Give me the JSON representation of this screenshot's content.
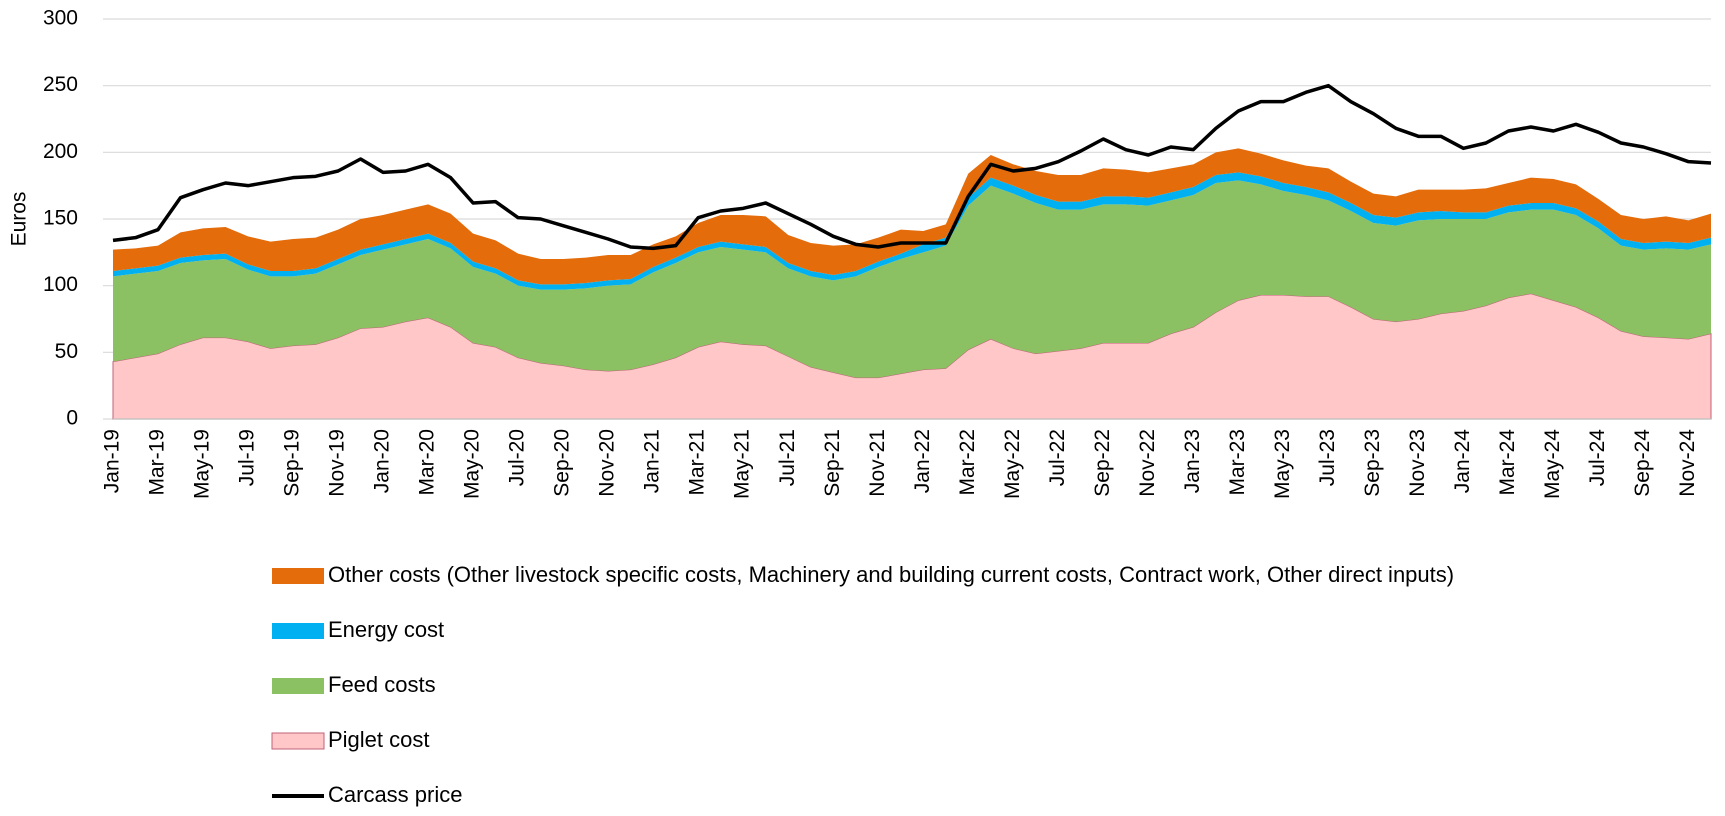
{
  "chart_data": {
    "type": "area",
    "stacked": true,
    "y_label": "Euros",
    "categories": [
      "Jan-19",
      null,
      "Mar-19",
      null,
      "May-19",
      null,
      "Jul-19",
      null,
      "Sep-19",
      null,
      "Nov-19",
      null,
      "Jan-20",
      null,
      "Mar-20",
      null,
      "May-20",
      null,
      "Jul-20",
      null,
      "Sep-20",
      null,
      "Nov-20",
      null,
      "Jan-21",
      null,
      "Mar-21",
      null,
      "May-21",
      null,
      "Jul-21",
      null,
      "Sep-21",
      null,
      "Nov-21",
      null,
      "Jan-22",
      null,
      "Mar-22",
      null,
      "May-22",
      null,
      "Jul-22",
      null,
      "Sep-22",
      null,
      "Nov-22",
      null,
      "Jan-23",
      null,
      "Mar-23",
      null,
      "May-23",
      null,
      "Jul-23",
      null,
      "Sep-23",
      null,
      "Nov-23",
      null,
      "Jan-24",
      null,
      "Mar-24",
      null,
      "May-24",
      null,
      "Jul-24",
      null,
      "Sep-24",
      null,
      "Nov-24",
      null
    ],
    "ylim": [
      0,
      300
    ],
    "yticks": [
      0,
      50,
      100,
      150,
      200,
      250,
      300
    ],
    "grid": true,
    "series": [
      {
        "name": "Piglet cost",
        "type": "area",
        "color": "#ffc7c7",
        "stroke": "#c0607a",
        "values": [
          43,
          46,
          49,
          56,
          61,
          61,
          58,
          53,
          55,
          56,
          61,
          68,
          69,
          73,
          76,
          69,
          57,
          54,
          46,
          42,
          40,
          37,
          36,
          37,
          41,
          46,
          54,
          58,
          56,
          55,
          47,
          39,
          35,
          31,
          31,
          34,
          37,
          38,
          52,
          60,
          53,
          49,
          51,
          53,
          57,
          57,
          57,
          64,
          69,
          80,
          89,
          93,
          93,
          92,
          92,
          84,
          75,
          73,
          75,
          79,
          81,
          85,
          91,
          94,
          89,
          84,
          76,
          66,
          62,
          61,
          60,
          64
        ]
      },
      {
        "name": "Feed costs",
        "type": "area",
        "color": "#8bc162",
        "values": [
          64,
          63,
          62,
          61,
          58,
          59,
          54,
          54,
          52,
          53,
          55,
          55,
          58,
          58,
          59,
          59,
          57,
          55,
          54,
          55,
          57,
          61,
          64,
          64,
          69,
          71,
          71,
          71,
          71,
          70,
          66,
          68,
          69,
          76,
          83,
          86,
          88,
          92,
          108,
          115,
          116,
          113,
          106,
          104,
          104,
          104,
          103,
          100,
          99,
          97,
          90,
          83,
          78,
          76,
          72,
          72,
          72,
          72,
          74,
          71,
          69,
          65,
          64,
          63,
          68,
          69,
          67,
          64,
          65,
          67,
          67,
          67
        ]
      },
      {
        "name": "Energy cost",
        "type": "area",
        "color": "#00b0f0",
        "values": [
          4,
          4,
          4,
          4,
          4,
          4,
          4,
          4,
          4,
          4,
          4,
          4,
          4,
          4,
          4,
          4,
          4,
          4,
          4,
          4,
          4,
          4,
          4,
          4,
          4,
          4,
          4,
          4,
          4,
          4,
          4,
          4,
          4,
          4,
          4,
          4,
          6,
          6,
          6,
          6,
          6,
          6,
          6,
          6,
          6,
          6,
          6,
          6,
          6,
          6,
          6,
          6,
          6,
          6,
          6,
          6,
          6,
          6,
          6,
          6,
          5,
          5,
          5,
          5,
          5,
          5,
          5,
          5,
          5,
          5,
          5,
          5
        ]
      },
      {
        "name": "Other costs (Other livestock specific costs, Machinery and building current costs, Contract work, Other direct inputs)",
        "type": "area",
        "color": "#e46c0a",
        "values": [
          16,
          15,
          15,
          19,
          20,
          20,
          21,
          22,
          24,
          23,
          22,
          23,
          22,
          22,
          22,
          22,
          21,
          21,
          20,
          19,
          19,
          19,
          19,
          18,
          17,
          16,
          18,
          20,
          22,
          23,
          21,
          21,
          22,
          20,
          18,
          18,
          10,
          10,
          18,
          17,
          16,
          18,
          20,
          20,
          21,
          20,
          19,
          18,
          17,
          17,
          18,
          17,
          17,
          16,
          18,
          16,
          16,
          16,
          17,
          16,
          17,
          18,
          17,
          19,
          18,
          18,
          17,
          18,
          18,
          19,
          17,
          18
        ]
      },
      {
        "name": "Carcass price",
        "type": "line",
        "color": "#000000",
        "values": [
          134,
          136,
          142,
          166,
          172,
          177,
          175,
          178,
          181,
          182,
          186,
          195,
          185,
          186,
          191,
          181,
          162,
          163,
          151,
          150,
          145,
          140,
          135,
          129,
          128,
          130,
          151,
          156,
          158,
          162,
          154,
          146,
          137,
          131,
          129,
          132,
          132,
          132,
          167,
          191,
          186,
          188,
          193,
          201,
          210,
          202,
          198,
          204,
          202,
          218,
          231,
          238,
          238,
          245,
          250,
          238,
          229,
          218,
          212,
          212,
          203,
          207,
          216,
          219,
          216,
          221,
          215,
          207,
          204,
          199,
          193,
          192
        ]
      }
    ]
  }
}
